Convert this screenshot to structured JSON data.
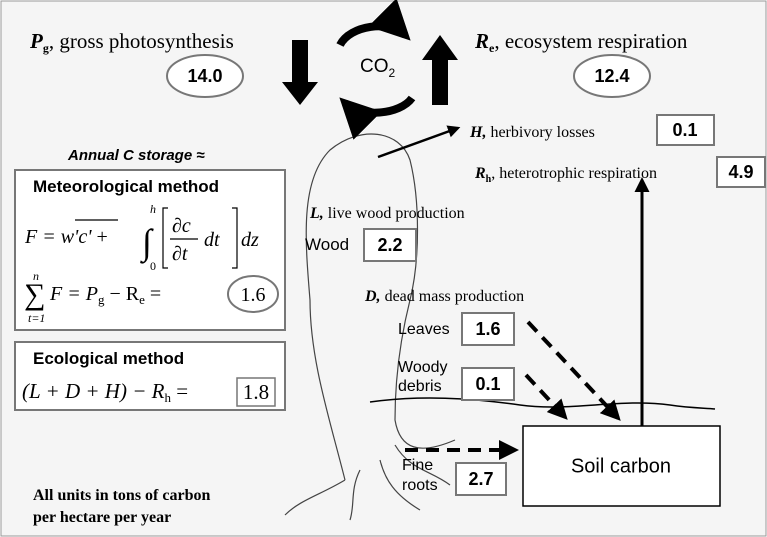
{
  "photosynthesis": {
    "symbol": "P",
    "sub": "g",
    "label": ", gross photosynthesis",
    "value": "14.0"
  },
  "co2": {
    "symbol": "CO",
    "sub": "2"
  },
  "respiration": {
    "symbol": "R",
    "sub": "e",
    "label": ", ecosystem respiration",
    "value": "12.4"
  },
  "herbivory": {
    "label": "H,",
    "text": " herbivory losses",
    "value": "0.1"
  },
  "heterotrophic": {
    "symbol": "R",
    "sub": "h",
    "label": ", heterotrophic respiration",
    "value": "4.9"
  },
  "storage_title": "Annual C storage ≈",
  "meteorological": {
    "title": "Meteorological method",
    "line1": {
      "lhs": "F = ",
      "flux": "w'c'",
      "plus": " + ",
      "upper": "h",
      "lower": "0",
      "num": "∂c",
      "den": "∂t",
      "dt": "dt",
      "dz": "dz"
    },
    "line2": {
      "upper": "n",
      "lower": "t=1",
      "sum": "∑",
      "f": "F = P",
      "g": "g",
      "minus": " − R",
      "e": "e",
      "eq": " =",
      "value": "1.6"
    }
  },
  "ecological": {
    "title": "Ecological method",
    "expr": "(L + D + H) − R",
    "sub": "h",
    "eq": " =",
    "value": "1.8"
  },
  "live_wood": {
    "label": "L,",
    "text": " live wood production",
    "item": "Wood",
    "value": "2.2"
  },
  "dead_mass": {
    "label": "D,",
    "text": " dead mass production"
  },
  "leaves": {
    "item": "Leaves",
    "value": "1.6"
  },
  "woody_debris": {
    "item1": "Woody",
    "item2": "debris",
    "value": "0.1"
  },
  "fine_roots": {
    "item1": "Fine",
    "item2": "roots",
    "value": "2.7"
  },
  "soil_carbon": "Soil carbon",
  "note": {
    "line1": "All units in tons of carbon",
    "line2": "per hectare per year"
  }
}
